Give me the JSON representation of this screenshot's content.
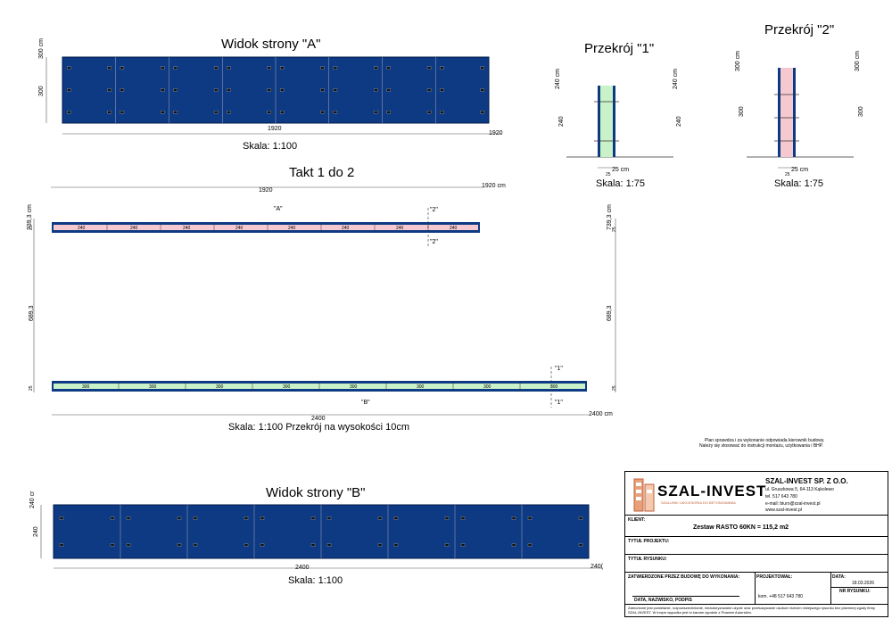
{
  "view_a": {
    "title": "Widok strony \"A\"",
    "height_top": "300 cm",
    "height_side": "300",
    "width": "1920",
    "width_end": "1920",
    "scale": "Skala: 1:100"
  },
  "section1": {
    "title": "Przekrój \"1\"",
    "h_left_top": "240 cm",
    "h_left": "240",
    "h_right_top": "240 cm",
    "h_right": "240",
    "thickness": "25 cm",
    "tick": "25",
    "scale": "Skala: 1:75"
  },
  "section2": {
    "title": "Przekrój \"2\"",
    "h_left_top": "300 cm",
    "h_left": "300",
    "h_right_top": "300 cm",
    "h_right": "300",
    "thickness": "25 cm",
    "tick": "25",
    "scale": "Skala: 1:75"
  },
  "plan": {
    "title": "Takt 1 do 2",
    "top_width": "1920",
    "top_width_end": "1920 cm",
    "wall_a_panels": [
      "240",
      "240",
      "240",
      "240",
      "240",
      "240",
      "240",
      "240"
    ],
    "marker_a": "\"A\"",
    "marker_2": "\"2\"",
    "left_top": "739,3 cm",
    "right_top": "739,3 cm",
    "left_mid": "689,3",
    "right_mid": "689,3",
    "wall_thk": "25",
    "wall_b_panels": [
      "300",
      "300",
      "300",
      "300",
      "300",
      "300",
      "300",
      "300"
    ],
    "marker_b": "\"B\"",
    "marker_1": "\"1\"",
    "bottom_width": "2400",
    "bottom_width_end": "2400 cm",
    "scale": "Skala: 1:100   Przekrój na wysokości 10cm"
  },
  "note": {
    "line1": "Plan sprawdza i za wykonanie odpowiada kierownik budowy.",
    "line2": "Należy się stosować do instrukcji montażu, użytkowania i BHP."
  },
  "view_b": {
    "title": "Widok strony \"B\"",
    "height_top": "240 cr",
    "height_side": "240",
    "width": "2400",
    "width_end": "240(",
    "scale": "Skala: 1:100"
  },
  "titleblock": {
    "logo_text": "SZAL-INVEST",
    "logo_sub": "SZALUNKI I AKCESORIA DO BETONOWANIA",
    "company": "SZAL-INVEST SP. Z O.O.",
    "address": "ul. Gruszkowa 5, 64-113 Kąkolewo",
    "phone": "tel. 517 643 780",
    "email": "e-mail: biuro@szal-invest.pl",
    "web": "www.szal-invest.pl",
    "client_label": "KLIENT:",
    "set_value": "Zestaw RASTO 60KN = 115,2 m2",
    "project_label": "TYTUŁ PROJEKTU:",
    "drawing_label": "TYTUŁ RYSUNKU:",
    "approved_label": "ZATWIERDZONE PRZEZ BUDOWĘ DO WYKONANIA:",
    "designer_label": "PROJEKTOWAŁ:",
    "date_label": "DATA:",
    "date_value": "18.03.2026",
    "date_name_label": "DATA, NAZWISKO, PODPIS",
    "designer_phone": "kom. +48 517 643 780",
    "drawing_no_label": "NR RYSUNKU:",
    "footer": "Zabronione jest powielanie, rozpowszechnianie, nieautoryzowane użycie oraz przekazywanie osobom trzecim niniejszego rysunku bez pisemnej zgody firmy SZAL-INVEST. W innym wypadku jest to karane zgodnie z Prawem Autorskim."
  }
}
